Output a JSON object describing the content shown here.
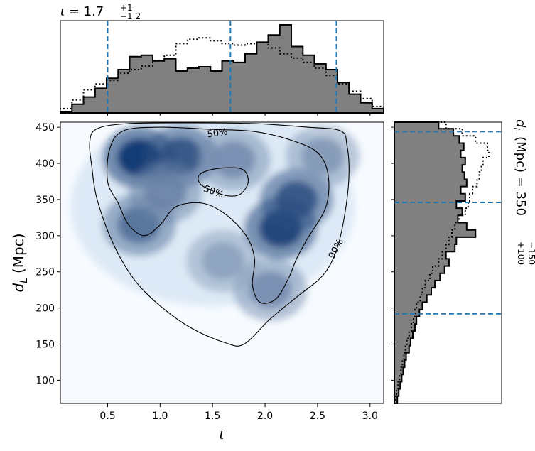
{
  "chart_data": [
    {
      "type": "heatmap",
      "panel": "joint",
      "xlabel": "ι",
      "ylabel_main": "d",
      "ylabel_sub": "L",
      "ylabel_unit": "(Mpc)",
      "xlim": [
        0.05,
        3.13
      ],
      "ylim": [
        68,
        457
      ],
      "xticks": [
        0.5,
        1.0,
        1.5,
        2.0,
        2.5,
        3.0
      ],
      "xtick_labels": [
        "0.5",
        "1.0",
        "1.5",
        "2.0",
        "2.5",
        "3.0"
      ],
      "yticks": [
        100,
        150,
        200,
        250,
        300,
        350,
        400,
        450
      ],
      "ytick_labels": [
        "100",
        "150",
        "200",
        "250",
        "300",
        "350",
        "400",
        "450"
      ],
      "colormap": "Blues",
      "density_peaks": [
        {
          "x": 0.8,
          "y": 408,
          "weight": 1.0
        },
        {
          "x": 1.2,
          "y": 410,
          "weight": 0.85
        },
        {
          "x": 0.8,
          "y": 315,
          "weight": 0.7
        },
        {
          "x": 2.15,
          "y": 310,
          "weight": 0.95
        },
        {
          "x": 2.3,
          "y": 350,
          "weight": 0.85
        },
        {
          "x": 1.05,
          "y": 360,
          "weight": 0.6
        },
        {
          "x": 1.7,
          "y": 405,
          "weight": 0.55
        },
        {
          "x": 2.05,
          "y": 225,
          "weight": 0.55
        },
        {
          "x": 1.6,
          "y": 265,
          "weight": 0.45
        },
        {
          "x": 2.55,
          "y": 410,
          "weight": 0.5
        }
      ],
      "contours": [
        {
          "level": "90%",
          "label": "90%",
          "label_at": [
            2.7,
            280
          ],
          "points": [
            [
              0.33,
              430
            ],
            [
              0.4,
              448
            ],
            [
              0.7,
              455
            ],
            [
              1.3,
              456
            ],
            [
              1.9,
              455
            ],
            [
              2.4,
              450
            ],
            [
              2.72,
              445
            ],
            [
              2.78,
              425
            ],
            [
              2.8,
              385
            ],
            [
              2.76,
              330
            ],
            [
              2.68,
              280
            ],
            [
              2.55,
              245
            ],
            [
              2.3,
              215
            ],
            [
              2.05,
              185
            ],
            [
              1.8,
              150
            ],
            [
              1.62,
              152
            ],
            [
              1.3,
              172
            ],
            [
              1.0,
              203
            ],
            [
              0.75,
              240
            ],
            [
              0.55,
              290
            ],
            [
              0.4,
              350
            ],
            [
              0.35,
              395
            ]
          ]
        },
        {
          "level": "50%",
          "label": "50%",
          "label_at": [
            1.55,
            438
          ],
          "points": [
            [
              0.5,
              375
            ],
            [
              0.52,
              420
            ],
            [
              0.65,
              445
            ],
            [
              1.0,
              450
            ],
            [
              1.5,
              447
            ],
            [
              1.9,
              444
            ],
            [
              2.25,
              432
            ],
            [
              2.5,
              415
            ],
            [
              2.6,
              385
            ],
            [
              2.58,
              340
            ],
            [
              2.4,
              295
            ],
            [
              2.3,
              268
            ],
            [
              2.22,
              240
            ],
            [
              2.1,
              212
            ],
            [
              1.95,
              208
            ],
            [
              1.88,
              232
            ],
            [
              1.9,
              268
            ],
            [
              1.82,
              300
            ],
            [
              1.62,
              330
            ],
            [
              1.4,
              345
            ],
            [
              1.15,
              340
            ],
            [
              1.0,
              315
            ],
            [
              0.85,
              300
            ],
            [
              0.7,
              315
            ],
            [
              0.6,
              345
            ]
          ]
        },
        {
          "level": "50%",
          "label": "50%",
          "label_at": [
            1.5,
            357
          ],
          "points": [
            [
              1.38,
              385
            ],
            [
              1.55,
              393
            ],
            [
              1.78,
              392
            ],
            [
              1.84,
              375
            ],
            [
              1.77,
              358
            ],
            [
              1.65,
              355
            ],
            [
              1.5,
              362
            ],
            [
              1.38,
              372
            ]
          ]
        }
      ]
    },
    {
      "type": "bar",
      "panel": "top-marginal",
      "subtitle_symbol": "ι",
      "subtitle_value": "1.7",
      "subtitle_plus": "+1",
      "subtitle_minus": "−1.2",
      "quantile_lines": [
        0.5,
        1.67,
        2.68
      ],
      "bin_edges": [
        0.05,
        0.16,
        0.27,
        0.38,
        0.49,
        0.6,
        0.71,
        0.82,
        0.93,
        1.04,
        1.15,
        1.26,
        1.37,
        1.48,
        1.59,
        1.7,
        1.81,
        1.92,
        2.03,
        2.14,
        2.25,
        2.36,
        2.47,
        2.58,
        2.69,
        2.8,
        2.91,
        3.02,
        3.13
      ],
      "series": [
        {
          "style": "filled-solid",
          "values": [
            2,
            12,
            22,
            34,
            48,
            60,
            78,
            80,
            72,
            75,
            58,
            62,
            64,
            58,
            72,
            70,
            82,
            98,
            108,
            122,
            92,
            80,
            68,
            60,
            42,
            26,
            14,
            6
          ]
        },
        {
          "style": "dotted",
          "values": [
            6,
            18,
            32,
            40,
            45,
            55,
            60,
            65,
            72,
            80,
            96,
            102,
            104,
            100,
            96,
            94,
            96,
            98,
            90,
            82,
            76,
            70,
            62,
            52,
            40,
            30,
            20,
            9
          ]
        }
      ]
    },
    {
      "type": "bar",
      "panel": "right-marginal",
      "subtitle_symbol": "d",
      "subtitle_sub": "L",
      "subtitle_unit": "(Mpc)",
      "subtitle_value": "350",
      "subtitle_plus": "+100",
      "subtitle_minus": "−150",
      "quantile_lines": [
        192,
        346,
        444
      ],
      "bin_edges": [
        68,
        78,
        88,
        98,
        108,
        118,
        128,
        138,
        148,
        158,
        168,
        178,
        188,
        198,
        208,
        218,
        228,
        238,
        248,
        258,
        268,
        278,
        288,
        298,
        308,
        318,
        328,
        338,
        348,
        358,
        368,
        378,
        388,
        398,
        408,
        418,
        428,
        438,
        448,
        457
      ],
      "series": [
        {
          "style": "filled-solid",
          "values": [
            4,
            6,
            8,
            10,
            12,
            14,
            16,
            20,
            22,
            25,
            28,
            30,
            34,
            38,
            44,
            50,
            55,
            62,
            68,
            74,
            70,
            82,
            84,
            110,
            98,
            86,
            92,
            84,
            96,
            90,
            98,
            95,
            92,
            96,
            90,
            94,
            88,
            80,
            60
          ]
        },
        {
          "style": "dotted",
          "values": [
            1,
            3,
            5,
            7,
            9,
            11,
            13,
            15,
            17,
            20,
            23,
            26,
            28,
            30,
            35,
            38,
            42,
            48,
            52,
            60,
            65,
            70,
            74,
            78,
            82,
            88,
            96,
            100,
            102,
            106,
            112,
            115,
            118,
            120,
            128,
            126,
            110,
            92,
            70
          ]
        }
      ]
    }
  ],
  "colors": {
    "fill": "#808080",
    "edge": "#000000",
    "quantile": "#1f77b4",
    "contour": "#000000",
    "cmap_low": "#f7fbff",
    "cmap_high": "#08306b"
  }
}
